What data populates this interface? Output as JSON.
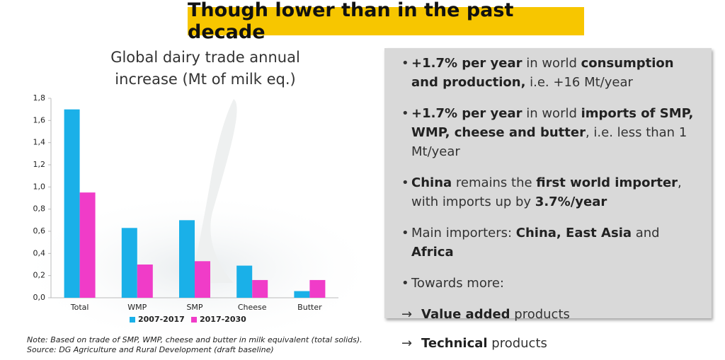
{
  "heading": "Though lower than in the past decade",
  "chart_data": {
    "type": "bar",
    "title": "Global dairy trade annual increase (Mt of milk eq.)",
    "categories": [
      "Total",
      "WMP",
      "SMP",
      "Cheese",
      "Butter"
    ],
    "series": [
      {
        "name": "2007-2017",
        "color": "#1ab0e8",
        "values": [
          1.7,
          0.63,
          0.7,
          0.29,
          0.06
        ]
      },
      {
        "name": "2017-2030",
        "color": "#f03cc8",
        "values": [
          0.95,
          0.3,
          0.33,
          0.16,
          0.16
        ]
      }
    ],
    "ylim": [
      0,
      1.8
    ],
    "yticks": [
      {
        "value": 0,
        "label": "0,0"
      },
      {
        "value": 0.2,
        "label": "0,2"
      },
      {
        "value": 0.4,
        "label": "0,4"
      },
      {
        "value": 0.6,
        "label": "0,6"
      },
      {
        "value": 0.8,
        "label": "0,8"
      },
      {
        "value": 1.0,
        "label": "1,0"
      },
      {
        "value": 1.2,
        "label": "1,2"
      },
      {
        "value": 1.4,
        "label": "1,4"
      },
      {
        "value": 1.6,
        "label": "1,6"
      },
      {
        "value": 1.8,
        "label": "1,8"
      }
    ],
    "grid": false,
    "legend": "bottom"
  },
  "note": [
    "Note: Based on trade of SMP, WMP, cheese and butter in milk equivalent (total solids).",
    "Source: DG Agriculture and Rural Development (draft baseline)"
  ],
  "panel": {
    "bullets": [
      {
        "marker": "•",
        "runs": [
          {
            "text": "+1.7% per year",
            "bold": true
          },
          {
            "text": " in world "
          },
          {
            "text": "consumption and production,",
            "bold": true
          },
          {
            "text": " i.e. +16 Mt/year"
          }
        ]
      },
      {
        "marker": "•",
        "runs": [
          {
            "text": "+1.7% per year",
            "bold": true
          },
          {
            "text": " in world "
          },
          {
            "text": "imports of SMP, WMP, cheese and butter",
            "bold": true
          },
          {
            "text": ", i.e. less than 1 Mt/year"
          }
        ]
      },
      {
        "marker": "•",
        "runs": [
          {
            "text": "China",
            "bold": true
          },
          {
            "text": " remains the "
          },
          {
            "text": "first world importer",
            "bold": true
          },
          {
            "text": ", with imports up by "
          },
          {
            "text": "3.7%/year",
            "bold": true
          }
        ]
      },
      {
        "marker": "•",
        "runs": [
          {
            "text": "Main importers: "
          },
          {
            "text": "China, East Asia",
            "bold": true
          },
          {
            "text": " and "
          },
          {
            "text": "Africa",
            "bold": true
          }
        ]
      },
      {
        "marker": "•",
        "runs": [
          {
            "text": "Towards more:"
          }
        ]
      },
      {
        "marker": "→",
        "runs": [
          {
            "text": "Value added",
            "bold": true
          },
          {
            "text": " products"
          }
        ]
      },
      {
        "marker": "→",
        "runs": [
          {
            "text": "Technical",
            "bold": true
          },
          {
            "text": " products"
          }
        ]
      }
    ]
  }
}
